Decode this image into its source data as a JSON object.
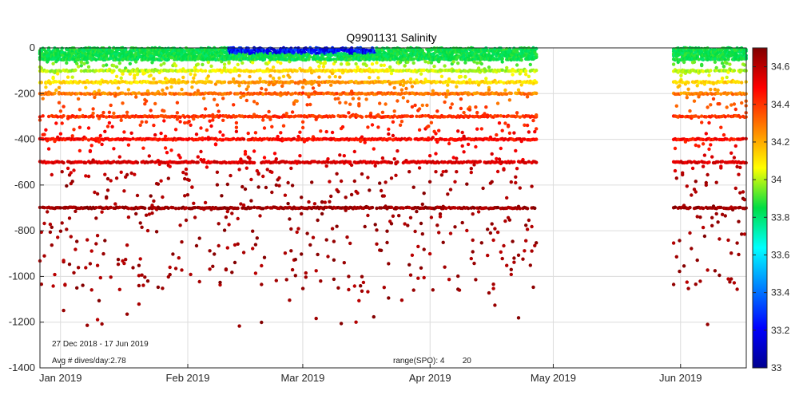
{
  "chart_data": {
    "type": "scatter",
    "title": "Q9901131 Salinity",
    "xlabel": "",
    "ylabel": "",
    "x_range": [
      "2018-12-27",
      "2019-06-17"
    ],
    "ylim": [
      -1400,
      0
    ],
    "x_ticks": [
      {
        "date": "2019-01-01",
        "label": "Jan 2019"
      },
      {
        "date": "2019-02-01",
        "label": "Feb 2019"
      },
      {
        "date": "2019-03-01",
        "label": "Mar 2019"
      },
      {
        "date": "2019-04-01",
        "label": "Apr 2019"
      },
      {
        "date": "2019-05-01",
        "label": "May 2019"
      },
      {
        "date": "2019-06-01",
        "label": "Jun 2019"
      }
    ],
    "y_ticks": [
      0,
      -200,
      -400,
      -600,
      -800,
      -1000,
      -1200,
      -1400
    ],
    "grid": true,
    "colorbar": {
      "min": 33,
      "max": 34.7,
      "ticks": [
        33,
        33.2,
        33.4,
        33.6,
        33.8,
        34,
        34.2,
        34.4,
        34.6
      ],
      "colormap": "jet"
    },
    "data_gap": [
      "2019-04-27",
      "2019-05-30"
    ],
    "depth_levels": [
      -50,
      -100,
      -150,
      -200,
      -300,
      -400,
      -500,
      -700
    ],
    "annotations": {
      "date_range": "27 Dec 2018 - 17 Jun 2019",
      "avg_dives": "Avg # dives/day:2.78",
      "range_spo": "range(SPO): 4        20"
    }
  }
}
